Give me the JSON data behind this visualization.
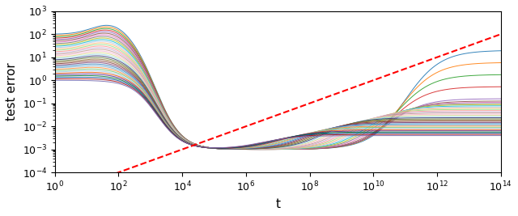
{
  "title": "",
  "xlabel": "t",
  "ylabel": "test error",
  "xlim_log": [
    0,
    14
  ],
  "ylim_log": [
    -4,
    3
  ],
  "n_curves": 35,
  "background_color": "#ffffff",
  "colors": [
    "#1f77b4",
    "#ff7f0e",
    "#2ca02c",
    "#d62728",
    "#9467bd",
    "#8c564b",
    "#e377c2",
    "#7f7f7f",
    "#bcbd22",
    "#17becf",
    "#aec7e8",
    "#ffbb78",
    "#98df8a",
    "#ff9896",
    "#c5b0d5",
    "#c49c94",
    "#f7b6d2",
    "#dbdb8d",
    "#9edae5",
    "#393b79",
    "#637939",
    "#8c6d31",
    "#843c39",
    "#7b4173",
    "#3182bd",
    "#6baed6",
    "#fd8d3c",
    "#74c476",
    "#9ecae1",
    "#e6550d",
    "#54278f",
    "#006d2c",
    "#08519c",
    "#a50f15",
    "#756bb1"
  ]
}
